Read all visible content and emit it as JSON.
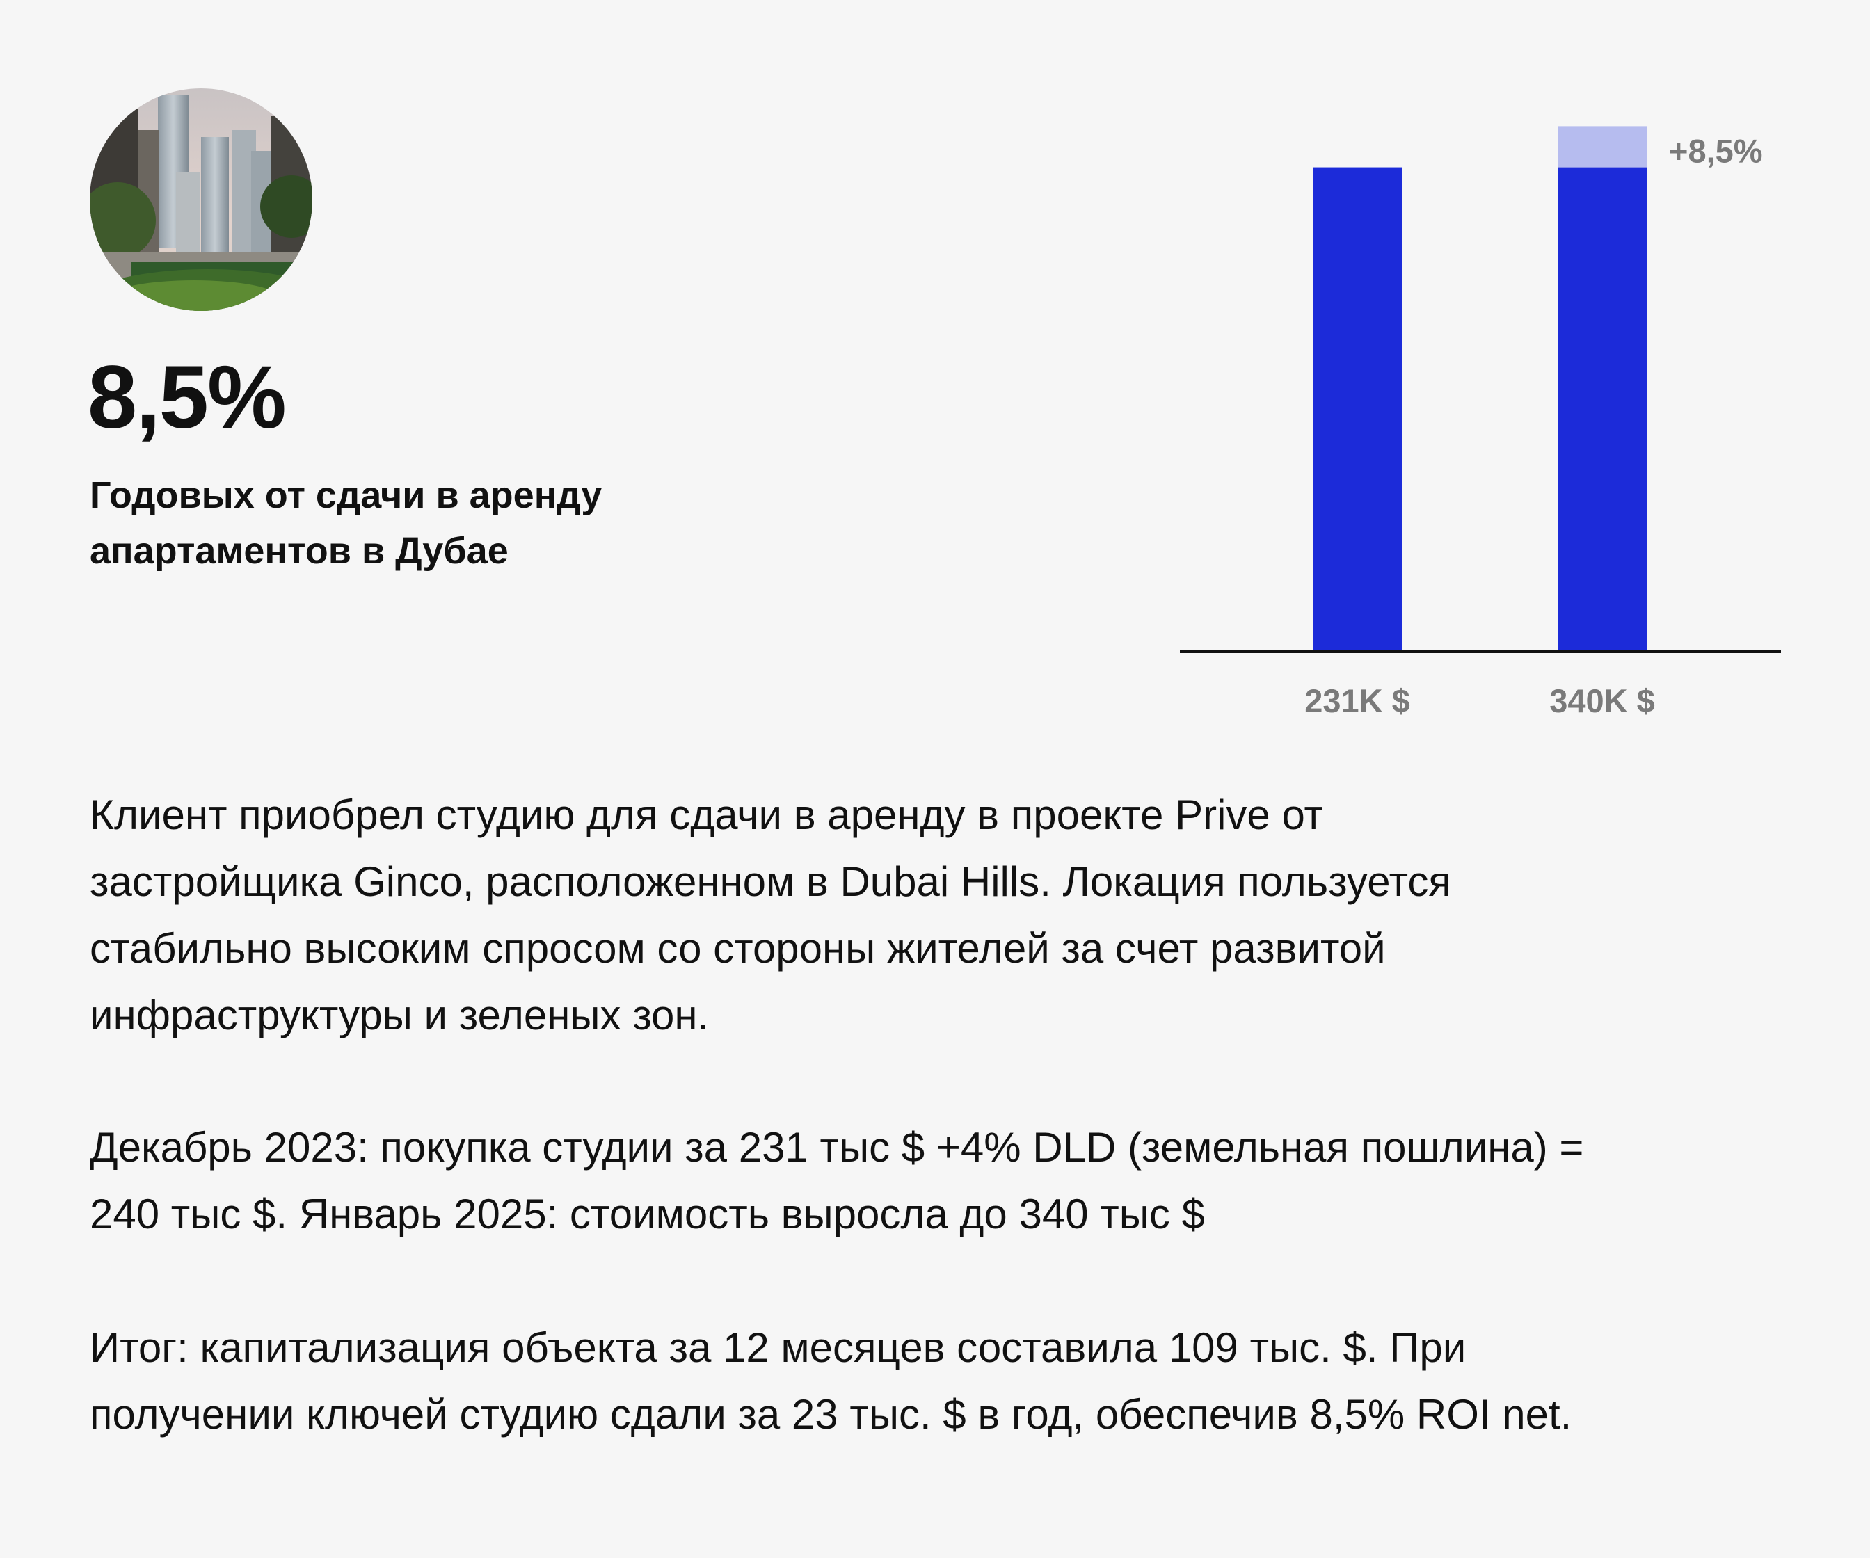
{
  "header": {
    "big_number": "8,5%",
    "subtitle_lines": [
      "Годовых от сдачи в аренду",
      "апартаментов в Дубае"
    ]
  },
  "photo": {
    "icon": "dubai-skyline-photo"
  },
  "chart_data": {
    "type": "bar",
    "categories": [
      "231K $",
      "340K $"
    ],
    "values": [
      100,
      108.5
    ],
    "base_value": 100,
    "increase_annotation": "+8,5%",
    "ylim": [
      0,
      112
    ],
    "grid": false,
    "colors": {
      "bar": "#1c2bd9",
      "increase": "#b6bcef",
      "baseline": "#111111",
      "labels": "#7a7a7a"
    }
  },
  "body": {
    "paragraph1": [
      "Клиент приобрел студию для сдачи в аренду в проекте Prive от",
      "застройщика Ginco, расположенном в Dubai Hills. Локация пользуется",
      "стабильно высоким спросом со стороны жителей за счет развитой",
      "инфраструктуры и зеленых зон."
    ],
    "paragraph2": [
      "Декабрь 2023: покупка студии за 231 тыс $ +4% DLD (земельная пошлина) =",
      "240 тыс $. Январь 2025: стоимость выросла до 340 тыс $"
    ],
    "paragraph3": [
      "Итог: капитализация объекта за 12 месяцев составила 109 тыс. $. При",
      "получении ключей студию сдали за 23 тыс. $ в год, обеспечив 8,5% ROI net."
    ]
  }
}
